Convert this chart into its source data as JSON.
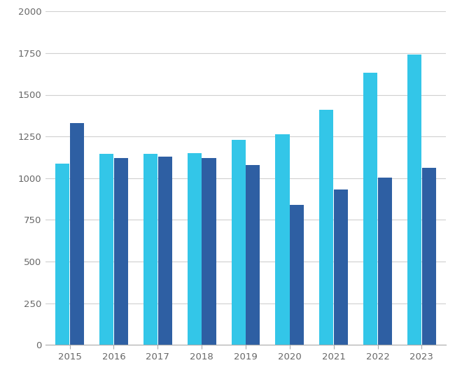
{
  "years": [
    "2015",
    "2016",
    "2017",
    "2018",
    "2019",
    "2020",
    "2021",
    "2022",
    "2023"
  ],
  "clean_energy": [
    1085,
    1145,
    1145,
    1150,
    1230,
    1265,
    1410,
    1630,
    1740
  ],
  "fossil_fuels": [
    1330,
    1120,
    1130,
    1120,
    1080,
    840,
    930,
    1005,
    1060
  ],
  "clean_color": "#33C6E8",
  "fossil_color": "#2E5FA3",
  "background_color": "#FFFFFF",
  "grid_color": "#D0D0D0",
  "ylim": [
    0,
    2000
  ],
  "yticks": [
    0,
    250,
    500,
    750,
    1000,
    1250,
    1500,
    1750,
    2000
  ],
  "bar_width": 0.32,
  "bar_gap": 0.01,
  "tick_fontsize": 9.5,
  "tick_color": "#666666"
}
